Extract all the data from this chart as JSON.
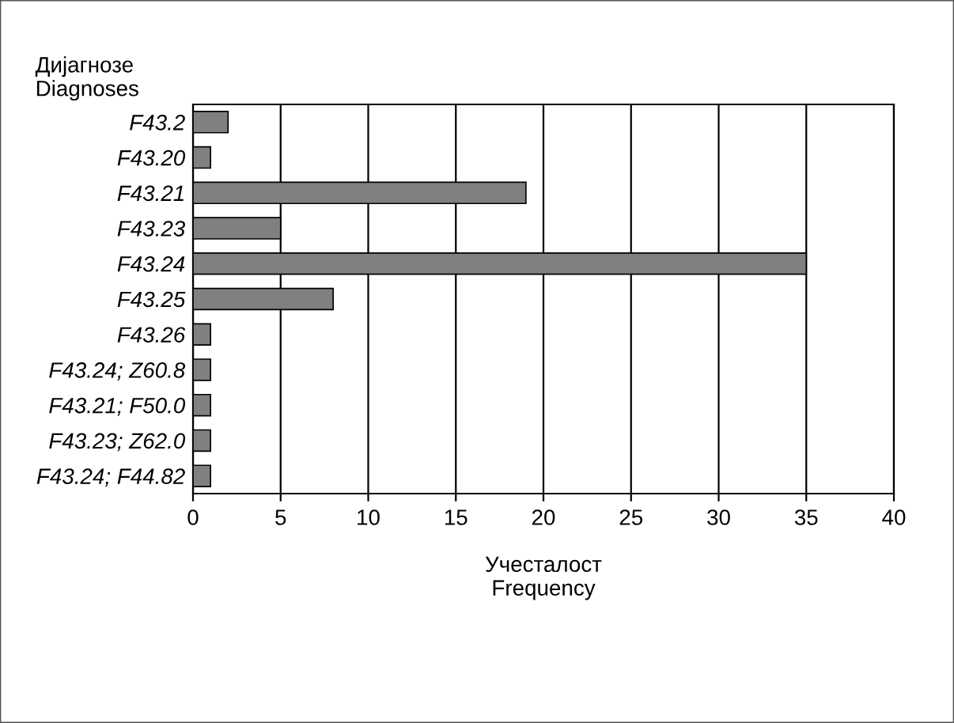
{
  "chart_data": {
    "type": "bar",
    "orientation": "horizontal",
    "ylabel": "Дијагнозе\nDiagnoses",
    "xlabel": "Учесталост\nFrequency",
    "categories": [
      "F43.2",
      "F43.20",
      "F43.21",
      "F43.23",
      "F43.24",
      "F43.25",
      "F43.26",
      "F43.24; Z60.8",
      "F43.21; F50.0",
      "F43.23; Z62.0",
      "F43.24; F44.82"
    ],
    "values": [
      2,
      1,
      19,
      5,
      35,
      8,
      1,
      1,
      1,
      1,
      1
    ],
    "color": "#808080",
    "xlim": [
      0,
      40
    ],
    "xticks": [
      0,
      5,
      10,
      15,
      20,
      25,
      30,
      35,
      40
    ],
    "grid": "x"
  }
}
